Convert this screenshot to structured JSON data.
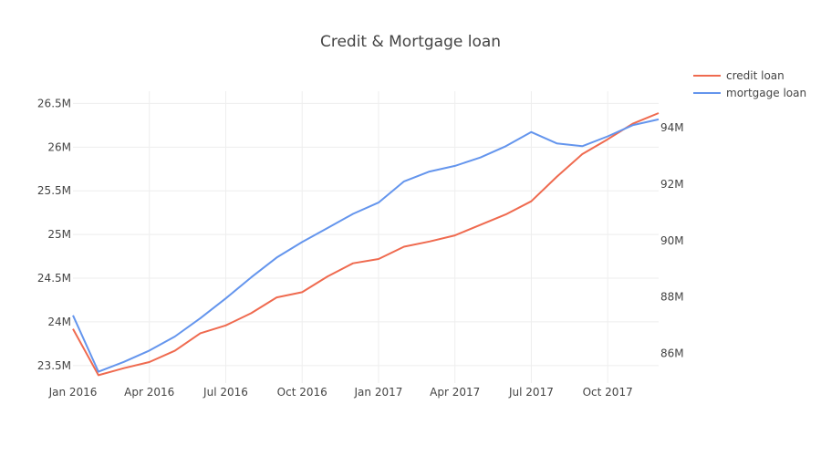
{
  "chart_data": {
    "type": "line",
    "title": "Credit & Mortgage loan",
    "xlabel": "",
    "ylabel": "",
    "y2label": "",
    "grid": true,
    "legend_placement": "top-right",
    "x": [
      "2016-01",
      "2016-02",
      "2016-03",
      "2016-04",
      "2016-05",
      "2016-06",
      "2016-07",
      "2016-08",
      "2016-09",
      "2016-10",
      "2016-11",
      "2016-12",
      "2017-01",
      "2017-02",
      "2017-03",
      "2017-04",
      "2017-05",
      "2017-06",
      "2017-07",
      "2017-08",
      "2017-09",
      "2017-10",
      "2017-11",
      "2017-12"
    ],
    "x_ticks": [
      {
        "value": "2016-01",
        "label": "Jan 2016"
      },
      {
        "value": "2016-04",
        "label": "Apr 2016"
      },
      {
        "value": "2016-07",
        "label": "Jul 2016"
      },
      {
        "value": "2016-10",
        "label": "Oct 2016"
      },
      {
        "value": "2017-01",
        "label": "Jan 2017"
      },
      {
        "value": "2017-04",
        "label": "Apr 2017"
      },
      {
        "value": "2017-07",
        "label": "Jul 2017"
      },
      {
        "value": "2017-10",
        "label": "Oct 2017"
      }
    ],
    "ylim": [
      23300000,
      26640000
    ],
    "y_ticks": [
      {
        "value": 23500000,
        "label": "23.5M"
      },
      {
        "value": 24000000,
        "label": "24M"
      },
      {
        "value": 24500000,
        "label": "24.5M"
      },
      {
        "value": 25000000,
        "label": "25M"
      },
      {
        "value": 25500000,
        "label": "25.5M"
      },
      {
        "value": 26000000,
        "label": "26M"
      },
      {
        "value": 26500000,
        "label": "26.5M"
      }
    ],
    "y2lim": [
      84950000,
      95300000
    ],
    "y2_ticks": [
      {
        "value": 86000000,
        "label": "86M"
      },
      {
        "value": 88000000,
        "label": "88M"
      },
      {
        "value": 90000000,
        "label": "90M"
      },
      {
        "value": 92000000,
        "label": "92M"
      },
      {
        "value": 94000000,
        "label": "94M"
      }
    ],
    "series": [
      {
        "name": "credit loan",
        "axis": "left",
        "color": "#ef6a4f",
        "values": [
          23920000,
          23390000,
          23470000,
          23540000,
          23670000,
          23870000,
          23960000,
          24100000,
          24280000,
          24340000,
          24520000,
          24670000,
          24720000,
          24860000,
          24920000,
          24990000,
          25110000,
          25230000,
          25380000,
          25660000,
          25920000,
          26090000,
          26270000,
          26390000
        ]
      },
      {
        "name": "mortgage loan",
        "axis": "right",
        "color": "#6495ed",
        "values": [
          87350000,
          85350000,
          85700000,
          86100000,
          86600000,
          87250000,
          87950000,
          88700000,
          89400000,
          89950000,
          90450000,
          90950000,
          91350000,
          92100000,
          92450000,
          92650000,
          92950000,
          93350000,
          93850000,
          93450000,
          93350000,
          93700000,
          94100000,
          94300000
        ]
      }
    ]
  }
}
